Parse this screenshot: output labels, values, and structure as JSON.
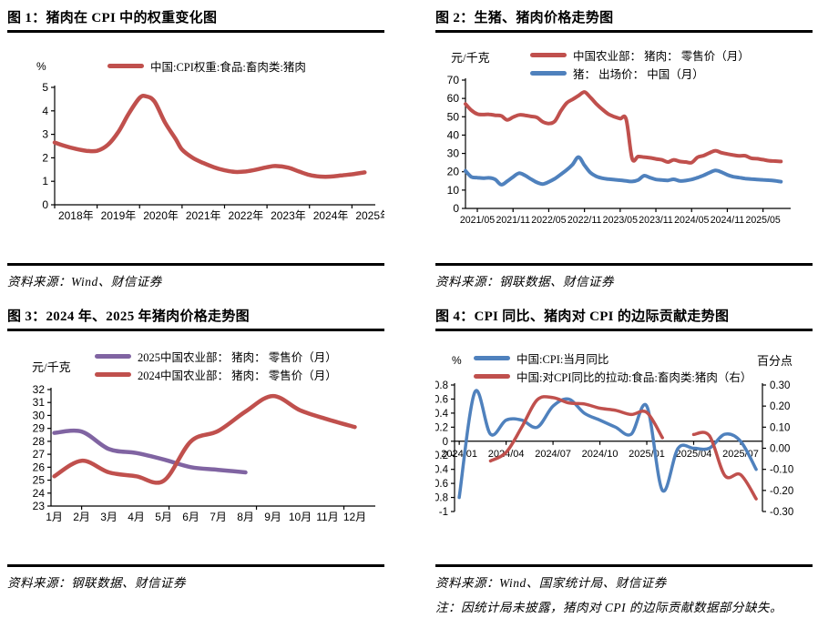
{
  "figures": [
    {
      "title": "图 1：猪肉在 CPI 中的权重变化图",
      "source": "资料来源：Wind、财信证券"
    },
    {
      "title": "图 2：生猪、猪肉价格走势图",
      "source": "资料来源：钢联数据、财信证券"
    },
    {
      "title": "图 3：2024 年、2025 年猪肉价格走势图",
      "source": "资料来源：钢联数据、财信证券"
    },
    {
      "title": "图 4：CPI 同比、猪肉对 CPI 的边际贡献走势图",
      "source": "资料来源：Wind、国家统计局、财信证券",
      "note": "注：因统计局未披露，猪肉对 CPI 的边际贡献数据部分缺失。"
    }
  ],
  "chart_data": [
    {
      "id": "fig1",
      "type": "line",
      "title": "猪肉在CPI中的权重变化图",
      "y_unit": "%",
      "ylim": [
        0,
        5
      ],
      "y_tick_vals": [
        0,
        1,
        2,
        3,
        4,
        5
      ],
      "y_tick_labels": [
        "0",
        "1",
        "2",
        "3",
        "4",
        "5"
      ],
      "xlim": [
        2018,
        2025.55
      ],
      "x_tick_vals": [
        2018,
        2019,
        2020,
        2021,
        2022,
        2023,
        2024,
        2025
      ],
      "x_label_vals": [
        2018.5,
        2019.5,
        2020.5,
        2021.5,
        2022.5,
        2023.5,
        2024.5,
        2025.5
      ],
      "x_tick_labels": [
        "2018年",
        "2019年",
        "2020年",
        "2021年",
        "2022年",
        "2023年",
        "2024年",
        "2025年"
      ],
      "grid": false,
      "legend_position": "top",
      "series": [
        {
          "name": "中国:CPI权重:食品:畜肉类:猪肉",
          "color": "#C0504D",
          "x": [
            2018.0,
            2018.25,
            2018.5,
            2018.75,
            2019.0,
            2019.25,
            2019.5,
            2019.75,
            2020.0,
            2020.15,
            2020.35,
            2020.6,
            2020.85,
            2021.0,
            2021.25,
            2021.5,
            2021.75,
            2022.0,
            2022.25,
            2022.5,
            2022.75,
            2023.0,
            2023.2,
            2023.5,
            2023.75,
            2024.0,
            2024.25,
            2024.5,
            2024.75,
            2025.0,
            2025.3
          ],
          "y": [
            2.65,
            2.5,
            2.38,
            2.3,
            2.3,
            2.55,
            3.1,
            3.9,
            4.55,
            4.62,
            4.4,
            3.5,
            2.8,
            2.35,
            2.0,
            1.78,
            1.6,
            1.47,
            1.4,
            1.42,
            1.5,
            1.6,
            1.65,
            1.58,
            1.42,
            1.27,
            1.2,
            1.2,
            1.25,
            1.3,
            1.38
          ]
        }
      ]
    },
    {
      "id": "fig2",
      "type": "line",
      "title": "生猪、猪肉价格走势图",
      "y_unit": "元/千克",
      "ylim": [
        0,
        70
      ],
      "y_tick_vals": [
        0,
        10,
        20,
        30,
        40,
        50,
        60,
        70
      ],
      "y_tick_labels": [
        "0",
        "10",
        "20",
        "30",
        "40",
        "50",
        "60",
        "70"
      ],
      "xlim": [
        2021.167,
        2025.72
      ],
      "x_tick_vals": [
        2021.333,
        2021.833,
        2022.333,
        2022.833,
        2023.333,
        2023.833,
        2024.333,
        2024.833,
        2025.333
      ],
      "x_tick_labels": [
        "2021/05",
        "2021/11",
        "2022/05",
        "2022/11",
        "2023/05",
        "2023/11",
        "2024/05",
        "2024/11",
        "2025/05"
      ],
      "grid": false,
      "legend_position": "top",
      "series": [
        {
          "name": "中国农业部： 猪肉： 零售价（月）",
          "color": "#C0504D",
          "x_start": 2021.167,
          "x_step": 0.08333,
          "y": [
            57,
            53.5,
            51.5,
            51.2,
            51.3,
            50.8,
            50.5,
            48.3,
            49.8,
            51,
            50.8,
            50.2,
            49.6,
            47.2,
            46.3,
            47.5,
            53,
            57.5,
            59.5,
            61.5,
            63.5,
            60.5,
            57,
            54,
            51.5,
            50,
            49,
            48.6,
            27.2,
            28.3,
            28,
            27.6,
            27,
            26.5,
            25.3,
            26.5,
            25.6,
            25.3,
            25,
            27.9,
            28.8,
            30.3,
            31.5,
            30.4,
            29.7,
            29.1,
            28.65,
            28.75,
            27.4,
            27.1,
            26.6,
            26,
            25.8,
            25.6
          ]
        },
        {
          "name": "猪： 出场价： 中国（月）",
          "color": "#4F81BD",
          "x_start": 2021.167,
          "x_step": 0.08333,
          "y": [
            20.5,
            17.2,
            16.8,
            16.5,
            16.7,
            15.8,
            13,
            14.8,
            17.2,
            19.2,
            18,
            16,
            14.2,
            13.3,
            14.5,
            16.2,
            18.5,
            21,
            24,
            28,
            23.5,
            19.5,
            17.5,
            16.5,
            16,
            15.7,
            15.4,
            15,
            14.7,
            15.5,
            17.8,
            16.8,
            15.8,
            15.5,
            15.3,
            15.9,
            15,
            15.2,
            15.8,
            16.8,
            18,
            19.5,
            20.7,
            19.8,
            18.3,
            17.3,
            16.8,
            16.3,
            16,
            15.8,
            15.6,
            15.4,
            15.1,
            14.6
          ]
        }
      ]
    },
    {
      "id": "fig3",
      "type": "line",
      "title": "2024年、2025年猪肉价格走势图",
      "y_unit": "元/千克",
      "ylim": [
        23,
        32
      ],
      "y_tick_vals": [
        23,
        24,
        25,
        26,
        27,
        28,
        29,
        30,
        31,
        32
      ],
      "y_tick_labels": [
        "23",
        "24",
        "25",
        "26",
        "27",
        "28",
        "29",
        "30",
        "31",
        "32"
      ],
      "xlim": [
        0.88,
        12.75
      ],
      "x_tick_vals": [
        2,
        5.2,
        8.4,
        11.6
      ],
      "x_label_vals": [
        1,
        2,
        3,
        4,
        5,
        6,
        7,
        8,
        9,
        10,
        11,
        12
      ],
      "x_tick_labels": [
        "1月",
        "2月",
        "3月",
        "4月",
        "5月",
        "6月",
        "7月",
        "8月",
        "9月",
        "10月",
        "11月",
        "12月"
      ],
      "grid": false,
      "legend_position": "top",
      "series": [
        {
          "name": "2025中国农业部： 猪肉： 零售价（月）",
          "color": "#8064A2",
          "x_start": 1,
          "x_step": 1,
          "y": [
            28.65,
            28.75,
            27.4,
            27.1,
            26.6,
            26.0,
            25.8,
            25.6
          ]
        },
        {
          "name": "2024中国农业部： 猪肉： 零售价（月）",
          "color": "#C0504D",
          "x_start": 1,
          "x_step": 1,
          "y": [
            25.3,
            26.5,
            25.6,
            25.3,
            24.95,
            28.0,
            28.8,
            30.3,
            31.5,
            30.4,
            29.7,
            29.1
          ]
        }
      ]
    },
    {
      "id": "fig4",
      "type": "line",
      "title": "CPI同比、猪肉对CPI的边际贡献走势图",
      "y_unit": "%",
      "y_unit_right": "百分点",
      "ylim": [
        -1,
        0.8
      ],
      "y_tick_vals": [
        -1,
        -0.8,
        -0.6,
        -0.4,
        -0.2,
        0,
        0.2,
        0.4,
        0.6,
        0.8
      ],
      "y_tick_labels": [
        "-1",
        "-0.8",
        "-0.6",
        "-0.4",
        "-0.2",
        "0",
        "0.2",
        "0.4",
        "0.6",
        "0.8"
      ],
      "ylim_right": [
        -0.3,
        0.3
      ],
      "y_tick_vals_right": [
        -0.3,
        -0.2,
        -0.1,
        0,
        0.1,
        0.2,
        0.3
      ],
      "y_tick_labels_right": [
        "-0.30",
        "-0.20",
        "-0.10",
        "0.00",
        "0.10",
        "0.20",
        "0.30"
      ],
      "xlim": [
        -0.3,
        19.4
      ],
      "x_tick_vals": [
        0,
        3,
        6,
        9,
        12,
        15,
        18
      ],
      "x_tick_labels": [
        "2024/01",
        "2024/04",
        "2024/07",
        "2024/10",
        "2025/01",
        "2025/04",
        "2025/07"
      ],
      "zero_axis": true,
      "grid": false,
      "legend_position": "top",
      "series": [
        {
          "name": "中国:CPI:当月同比",
          "color": "#4F81BD",
          "x_start": 0,
          "x_step": 1,
          "y": [
            -0.8,
            0.7,
            0.1,
            0.3,
            0.3,
            0.2,
            0.5,
            0.6,
            0.4,
            0.3,
            0.2,
            0.1,
            0.5,
            -0.7,
            -0.1,
            -0.1,
            -0.1,
            0.1,
            0.0,
            -0.4
          ]
        },
        {
          "name": "中国:对CPI同比的拉动:食品:畜肉类:猪肉（右）",
          "color": "#C0504D",
          "axis": "right",
          "x_start": 0,
          "x_step": 1,
          "y": [
            null,
            null,
            -0.06,
            -0.02,
            0.1,
            0.23,
            0.24,
            0.215,
            0.21,
            0.19,
            0.18,
            0.16,
            0.17,
            0.05,
            null,
            0.065,
            0.06,
            -0.13,
            -0.125,
            -0.24
          ]
        }
      ]
    }
  ]
}
